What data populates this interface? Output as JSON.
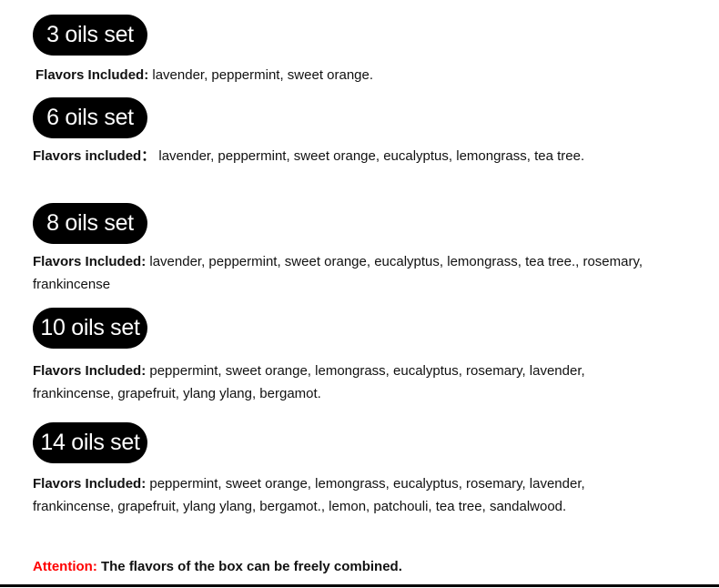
{
  "sets": [
    {
      "title": "3 oils set",
      "label": "Flavors Included:",
      "flavors": " lavender, peppermint, sweet orange."
    },
    {
      "title": "6 oils set",
      "label": "Flavors included：",
      "flavors": " lavender, peppermint, sweet orange, eucalyptus, lemongrass, tea tree."
    },
    {
      "title": "8 oils set",
      "label": "Flavors Included:",
      "flavors": " lavender, peppermint, sweet orange, eucalyptus, lemongrass, tea tree., rosemary, frankincense"
    },
    {
      "title": "10 oils set",
      "label": "Flavors Included:",
      "flavors": " peppermint, sweet orange, lemongrass, eucalyptus, rosemary, lavender, frankincense, grapefruit, ylang ylang, bergamot."
    },
    {
      "title": "14 oils set",
      "label": "Flavors Included:",
      "flavors": " peppermint, sweet orange, lemongrass, eucalyptus, rosemary, lavender, frankincense, grapefruit, ylang ylang, bergamot., lemon, patchouli, tea tree, sandalwood."
    }
  ],
  "attention": {
    "label": "Attention:",
    "text": " The flavors of the box can be freely combined."
  },
  "colors": {
    "pill_bg": "#000000",
    "attention": "#ff0000"
  }
}
